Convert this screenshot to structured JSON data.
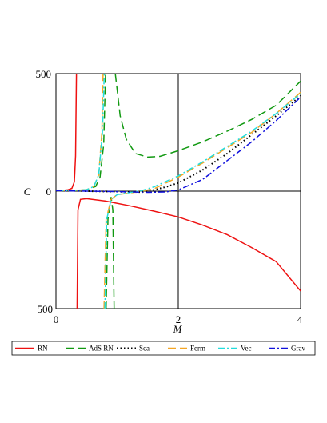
{
  "chart_data": {
    "type": "line",
    "xlabel": "M",
    "ylabel": "C",
    "xlim": [
      0,
      4
    ],
    "ylim": [
      -500,
      500
    ],
    "x_ticks": [
      "0",
      "2",
      "4"
    ],
    "y_ticks": [
      "500",
      "0",
      "−500"
    ],
    "grid": "axes through origin and x = 2",
    "legend_position": "bottom",
    "series": [
      {
        "name": "RN",
        "color": "#ee1111",
        "style": "solid",
        "segments": [
          [
            [
              0.02,
              2
            ],
            [
              0.1,
              3
            ],
            [
              0.2,
              6
            ],
            [
              0.26,
              12
            ],
            [
              0.3,
              40
            ],
            [
              0.32,
              150
            ],
            [
              0.335,
              500
            ]
          ],
          [
            [
              0.345,
              -500
            ],
            [
              0.36,
              -80
            ],
            [
              0.4,
              -35
            ],
            [
              0.5,
              -32
            ],
            [
              0.8,
              -42
            ],
            [
              1.2,
              -62
            ],
            [
              1.6,
              -85
            ],
            [
              2.0,
              -110
            ],
            [
              2.4,
              -145
            ],
            [
              2.8,
              -185
            ],
            [
              3.2,
              -240
            ],
            [
              3.6,
              -300
            ],
            [
              4.0,
              -425
            ]
          ]
        ]
      },
      {
        "name": "AdS RN",
        "color": "#119911",
        "style": "longdash",
        "segments": [
          [
            [
              0.02,
              2
            ],
            [
              0.3,
              3
            ],
            [
              0.5,
              6
            ],
            [
              0.65,
              20
            ],
            [
              0.72,
              60
            ],
            [
              0.78,
              200
            ],
            [
              0.81,
              500
            ]
          ],
          [
            [
              0.82,
              -500
            ],
            [
              0.85,
              -120
            ],
            [
              0.9,
              -25
            ],
            [
              0.93,
              -80
            ],
            [
              0.95,
              -500
            ]
          ],
          [
            [
              0.97,
              500
            ],
            [
              1.05,
              320
            ],
            [
              1.15,
              220
            ],
            [
              1.3,
              160
            ],
            [
              1.5,
              145
            ],
            [
              1.7,
              148
            ],
            [
              2.0,
              172
            ],
            [
              2.4,
              210
            ],
            [
              2.8,
              255
            ],
            [
              3.2,
              305
            ],
            [
              3.6,
              365
            ],
            [
              4.0,
              468
            ]
          ]
        ]
      },
      {
        "name": "Sca",
        "color": "#000000",
        "style": "dotted",
        "segments": [
          [
            [
              0.0,
              3
            ],
            [
              0.5,
              0
            ],
            [
              1.0,
              -2
            ],
            [
              1.4,
              -4
            ],
            [
              1.6,
              5
            ],
            [
              1.8,
              18
            ],
            [
              2.0,
              35
            ],
            [
              2.4,
              90
            ],
            [
              2.8,
              160
            ],
            [
              3.2,
              240
            ],
            [
              3.6,
              320
            ],
            [
              4.0,
              405
            ]
          ]
        ]
      },
      {
        "name": "Ferm",
        "color": "#f5a623",
        "style": "longdash",
        "segments": [
          [
            [
              0.02,
              2
            ],
            [
              0.3,
              3
            ],
            [
              0.5,
              6
            ],
            [
              0.62,
              20
            ],
            [
              0.7,
              70
            ],
            [
              0.75,
              250
            ],
            [
              0.77,
              500
            ]
          ],
          [
            [
              0.785,
              -500
            ],
            [
              0.82,
              -120
            ],
            [
              0.9,
              -35
            ],
            [
              1.0,
              -15
            ],
            [
              1.2,
              -8
            ],
            [
              1.4,
              0
            ],
            [
              1.6,
              10
            ],
            [
              2.0,
              60
            ],
            [
              2.4,
              120
            ],
            [
              2.8,
              185
            ],
            [
              3.2,
              250
            ],
            [
              3.6,
              330
            ],
            [
              4.0,
              420
            ]
          ]
        ]
      },
      {
        "name": "Vec",
        "color": "#22dddd",
        "style": "dashdot",
        "segments": [
          [
            [
              0.02,
              2
            ],
            [
              0.3,
              3
            ],
            [
              0.5,
              6
            ],
            [
              0.62,
              20
            ],
            [
              0.7,
              70
            ],
            [
              0.76,
              250
            ],
            [
              0.79,
              500
            ]
          ],
          [
            [
              0.8,
              -500
            ],
            [
              0.83,
              -120
            ],
            [
              0.9,
              -35
            ],
            [
              1.0,
              -15
            ],
            [
              1.2,
              -6
            ],
            [
              1.4,
              2
            ],
            [
              1.6,
              18
            ],
            [
              2.0,
              65
            ],
            [
              2.4,
              125
            ],
            [
              2.8,
              190
            ],
            [
              3.2,
              255
            ],
            [
              3.6,
              330
            ],
            [
              4.0,
              415
            ]
          ]
        ]
      },
      {
        "name": "Grav",
        "color": "#1111dd",
        "style": "dashdot",
        "segments": [
          [
            [
              0.0,
              2
            ],
            [
              0.5,
              0
            ],
            [
              1.0,
              -2
            ],
            [
              1.5,
              -5
            ],
            [
              1.8,
              -3
            ],
            [
              2.0,
              5
            ],
            [
              2.4,
              50
            ],
            [
              2.8,
              130
            ],
            [
              3.2,
              210
            ],
            [
              3.6,
              300
            ],
            [
              4.0,
              400
            ]
          ]
        ]
      }
    ]
  }
}
